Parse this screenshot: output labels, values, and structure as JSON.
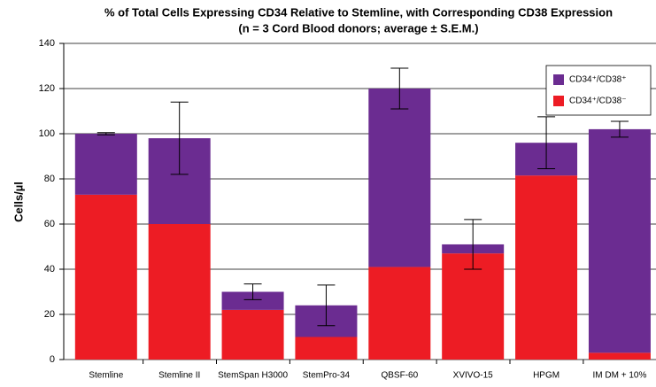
{
  "chart_data": {
    "type": "stacked_bar",
    "title": "% of Total Cells Expressing CD34 Relative to Stemline, with Corresponding CD38 Expression",
    "subtitle": "(n = 3 Cord Blood donors; average ± S.E.M.)",
    "y_label": "Cells/µl",
    "categories": [
      "Stemline",
      "Stemline II",
      "StemSpan H3000",
      "StemPro-34",
      "QBSF-60",
      "XVIVO-15",
      "HPGM",
      "IM DM + 10%"
    ],
    "series": [
      {
        "name": "CD34⁺/CD38⁻",
        "color": "#ed1c24",
        "values": [
          73,
          60,
          22,
          10,
          41,
          47,
          81.5,
          3
        ]
      },
      {
        "name": "CD34⁺/CD38⁺",
        "color": "#6b2c91",
        "values": [
          27,
          38,
          8,
          14,
          79,
          4,
          14.5,
          99
        ]
      }
    ],
    "errors": [
      0.5,
      16,
      3.5,
      9,
      9,
      11,
      11.5,
      3.5
    ],
    "ylim": [
      0,
      140
    ],
    "yticks": [
      0,
      20,
      40,
      60,
      80,
      100,
      120,
      140
    ],
    "grid": true,
    "legend": "upper right"
  }
}
